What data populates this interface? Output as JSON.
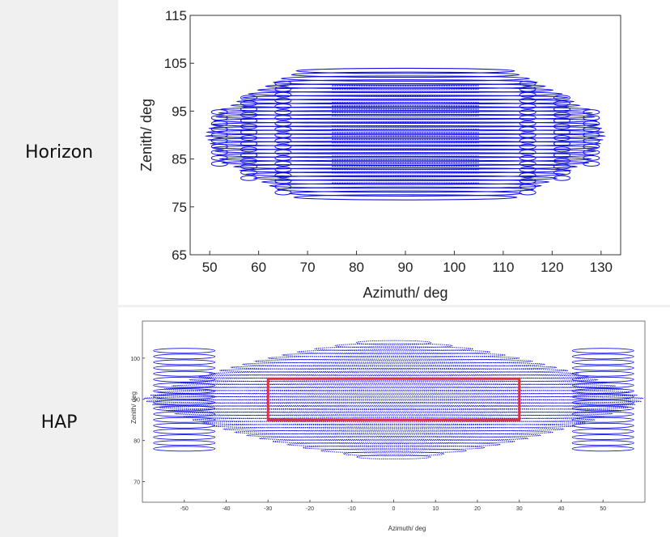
{
  "rows": [
    {
      "label": "Horizon"
    },
    {
      "label": "HAP"
    }
  ],
  "colors": {
    "trajectory": "#1010e0",
    "highlight_box": "#e03040",
    "label_background": "#f0f0f0"
  },
  "chart_data": [
    {
      "type": "scatter",
      "title": "",
      "xlabel": "Azimuth/ deg",
      "ylabel": "Zenith/ deg",
      "xlim": [
        46,
        134
      ],
      "ylim": [
        65,
        115
      ],
      "xticks": [
        50,
        60,
        70,
        80,
        90,
        100,
        110,
        120,
        130
      ],
      "yticks": [
        65,
        75,
        85,
        95,
        105,
        115
      ],
      "grid": false,
      "legend": "none",
      "region": {
        "inner_azimuth_range": [
          75,
          105
        ],
        "zenith_min_range": [
          77,
          84
        ],
        "zenith_max_range": [
          96,
          104
        ],
        "outer_azimuth_range": [
          49,
          131
        ]
      }
    },
    {
      "type": "scatter",
      "title": "",
      "xlabel": "Azimuth/ deg",
      "ylabel": "Zenith/ deg",
      "xlim": [
        -60,
        60
      ],
      "ylim": [
        65,
        109
      ],
      "xticks": [
        -50,
        -40,
        -30,
        -20,
        -10,
        0,
        10,
        20,
        30,
        40,
        50
      ],
      "yticks": [
        70,
        80,
        90,
        100
      ],
      "grid": false,
      "legend": "none",
      "region": {
        "azimuth_range": [
          -60,
          60
        ],
        "zenith_range": [
          76,
          104
        ]
      },
      "highlight_box": {
        "x": [
          -30,
          30
        ],
        "y": [
          85,
          95
        ]
      }
    }
  ]
}
